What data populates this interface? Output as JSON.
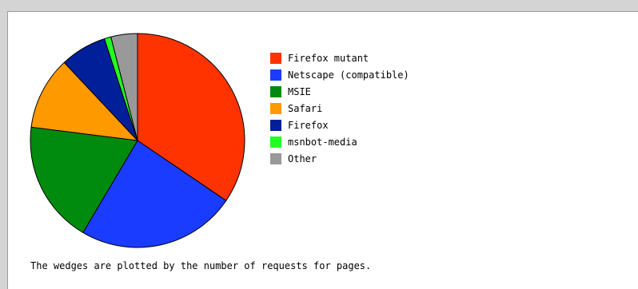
{
  "chart_data": {
    "type": "pie",
    "slices": [
      {
        "label": "Firefox mutant",
        "value": 34.5,
        "color": "#ff3300"
      },
      {
        "label": "Netscape (compatible)",
        "value": 24.0,
        "color": "#1a3cff"
      },
      {
        "label": "MSIE",
        "value": 18.5,
        "color": "#008a0e"
      },
      {
        "label": "Safari",
        "value": 11.0,
        "color": "#ff9900"
      },
      {
        "label": "Firefox",
        "value": 7.0,
        "color": "#001f99"
      },
      {
        "label": "msnbot-media",
        "value": 1.0,
        "color": "#22ff22"
      },
      {
        "label": "Other",
        "value": 4.0,
        "color": "#999999"
      }
    ],
    "start_angle": "top",
    "direction": "clockwise",
    "legend_position": "right"
  },
  "caption": "The wedges are plotted by the number of requests for pages."
}
